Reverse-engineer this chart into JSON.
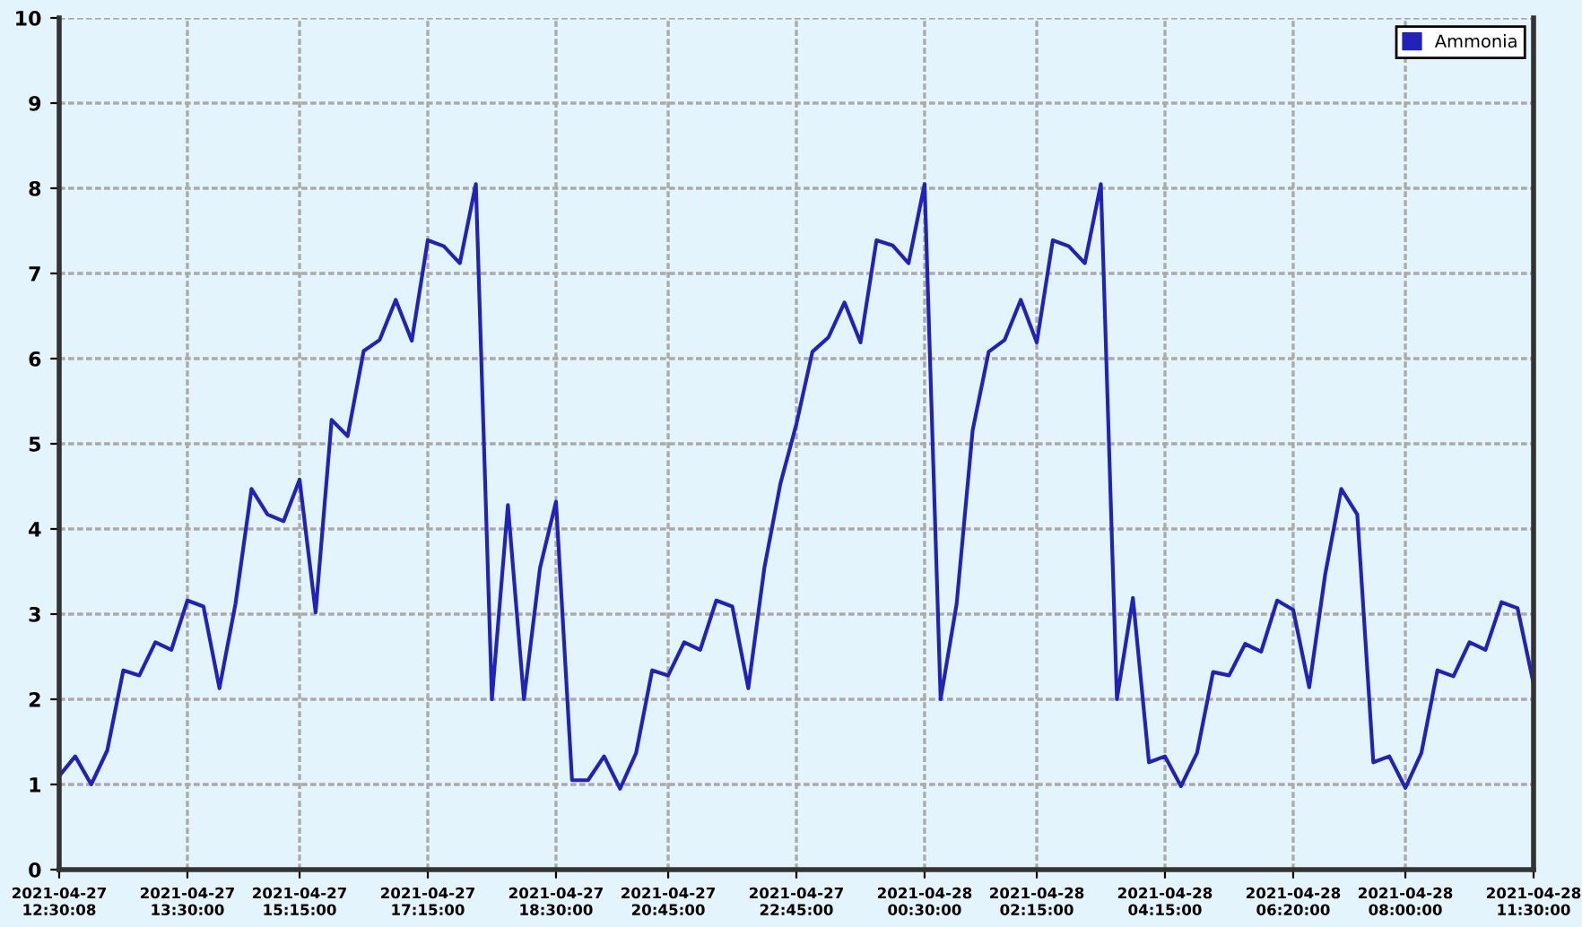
{
  "chart_data": {
    "type": "line",
    "categories": [
      "2021-04-27\n12:30:08",
      null,
      null,
      null,
      null,
      null,
      null,
      null,
      "2021-04-27\n13:30:00",
      null,
      null,
      null,
      null,
      null,
      null,
      "2021-04-27\n15:15:00",
      null,
      null,
      null,
      null,
      null,
      null,
      null,
      "2021-04-27\n17:15:00",
      null,
      null,
      null,
      null,
      null,
      null,
      null,
      "2021-04-27\n18:30:00",
      null,
      null,
      null,
      null,
      null,
      null,
      "2021-04-27\n20:45:00",
      null,
      null,
      null,
      null,
      null,
      null,
      null,
      "2021-04-27\n22:45:00",
      null,
      null,
      null,
      null,
      null,
      null,
      null,
      "2021-04-28\n00:30:00",
      null,
      null,
      null,
      null,
      null,
      null,
      "2021-04-28\n02:15:00",
      null,
      null,
      null,
      null,
      null,
      null,
      null,
      "2021-04-28\n04:15:00",
      null,
      null,
      null,
      null,
      null,
      null,
      null,
      "2021-04-28\n06:20:00",
      null,
      null,
      null,
      null,
      null,
      null,
      "2021-04-28\n08:00:00",
      null,
      null,
      null,
      null,
      null,
      null,
      null,
      "2021-04-28\n11:30:00"
    ],
    "series": [
      {
        "name": "Ammonia",
        "color": "#2222bb",
        "values": [
          1.1,
          1.33,
          1.0,
          1.4,
          2.34,
          2.28,
          2.67,
          2.58,
          3.16,
          3.09,
          2.13,
          3.12,
          4.47,
          4.17,
          4.09,
          4.58,
          3.02,
          5.28,
          5.09,
          6.09,
          6.22,
          6.69,
          6.21,
          7.39,
          7.32,
          7.12,
          8.05,
          2.0,
          4.28,
          2.0,
          3.54,
          4.32,
          1.05,
          1.05,
          1.33,
          0.95,
          1.37,
          2.34,
          2.28,
          2.67,
          2.58,
          3.16,
          3.09,
          2.13,
          3.54,
          4.53,
          5.23,
          6.08,
          6.25,
          6.66,
          6.19,
          7.39,
          7.33,
          7.12,
          8.05,
          2.0,
          3.12,
          5.16,
          6.08,
          6.22,
          6.69,
          6.19,
          7.39,
          7.32,
          7.12,
          8.05,
          2.0,
          3.19,
          1.26,
          1.33,
          0.98,
          1.37,
          2.32,
          2.28,
          2.65,
          2.56,
          3.16,
          3.05,
          2.14,
          3.47,
          4.47,
          4.17,
          1.26,
          1.33,
          0.96,
          1.37,
          2.34,
          2.27,
          2.67,
          2.58,
          3.14,
          3.07,
          2.18
        ]
      }
    ],
    "ylim": [
      0,
      10
    ],
    "yticks": [
      0,
      1,
      2,
      3,
      4,
      5,
      6,
      7,
      8,
      9,
      10
    ],
    "grid": true,
    "legend": "top right",
    "line_style": "solid"
  }
}
